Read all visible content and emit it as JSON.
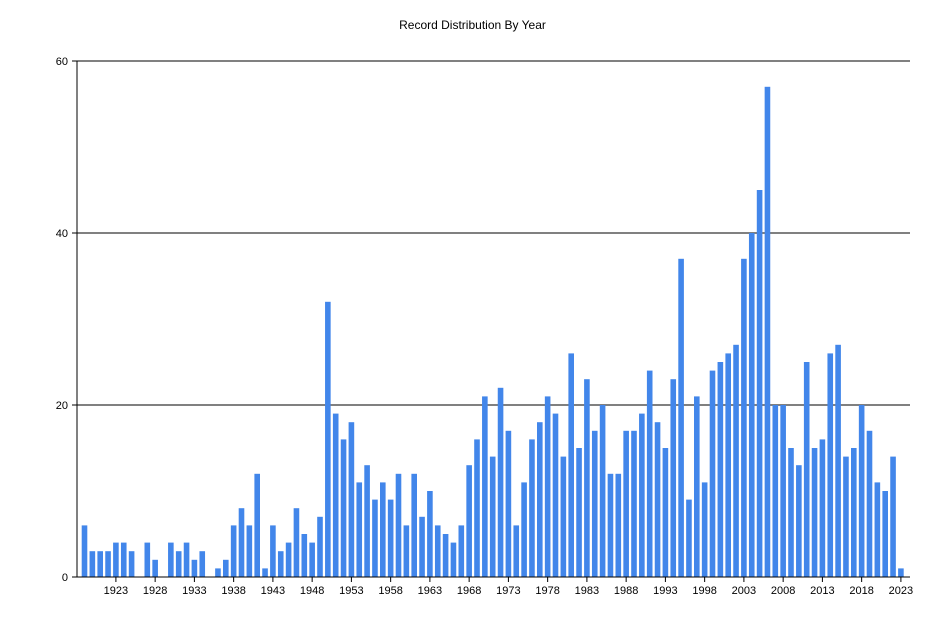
{
  "chart_data": {
    "type": "bar",
    "title": "Record Distribution By Year",
    "xlabel": "",
    "ylabel": "",
    "ylim": [
      0,
      60
    ],
    "yticks": [
      0,
      20,
      40,
      60
    ],
    "grid": true,
    "legend": "none",
    "bar_color": "#4286EA",
    "categories": [
      1919,
      1920,
      1921,
      1922,
      1923,
      1924,
      1925,
      1926,
      1927,
      1928,
      1929,
      1930,
      1931,
      1932,
      1933,
      1934,
      1935,
      1936,
      1937,
      1938,
      1939,
      1940,
      1941,
      1942,
      1943,
      1944,
      1945,
      1946,
      1947,
      1948,
      1949,
      1950,
      1951,
      1952,
      1953,
      1954,
      1955,
      1956,
      1957,
      1958,
      1959,
      1960,
      1961,
      1962,
      1963,
      1964,
      1965,
      1966,
      1967,
      1968,
      1969,
      1970,
      1971,
      1972,
      1973,
      1974,
      1975,
      1976,
      1977,
      1978,
      1979,
      1980,
      1981,
      1982,
      1983,
      1984,
      1985,
      1986,
      1987,
      1988,
      1989,
      1990,
      1991,
      1992,
      1993,
      1994,
      1995,
      1996,
      1997,
      1998,
      1999,
      2000,
      2001,
      2002,
      2003,
      2004,
      2005,
      2006,
      2007,
      2008,
      2009,
      2010,
      2011,
      2012,
      2013,
      2014,
      2015,
      2016,
      2017,
      2018,
      2019,
      2020,
      2021,
      2022,
      2023
    ],
    "values": [
      6,
      3,
      3,
      3,
      4,
      4,
      3,
      0,
      4,
      2,
      0,
      4,
      3,
      4,
      2,
      3,
      0,
      1,
      2,
      6,
      8,
      6,
      12,
      1,
      6,
      3,
      4,
      8,
      5,
      4,
      7,
      32,
      19,
      16,
      18,
      11,
      13,
      9,
      11,
      9,
      12,
      6,
      12,
      7,
      10,
      6,
      5,
      4,
      6,
      13,
      16,
      21,
      14,
      22,
      17,
      6,
      11,
      16,
      18,
      21,
      19,
      14,
      26,
      15,
      23,
      17,
      20,
      12,
      12,
      17,
      17,
      19,
      24,
      18,
      15,
      23,
      37,
      9,
      21,
      11,
      24,
      25,
      26,
      27,
      37,
      40,
      45,
      57,
      20,
      20,
      15,
      13,
      25,
      15,
      16,
      26,
      27,
      14,
      15,
      20,
      17,
      11,
      10,
      14,
      1
    ],
    "xtick_labels": [
      "1923",
      "1928",
      "1933",
      "1938",
      "1943",
      "1948",
      "1953",
      "1958",
      "1963",
      "1968",
      "1973",
      "1978",
      "1983",
      "1988",
      "1993",
      "1998",
      "2003",
      "2008",
      "2013",
      "2018",
      "2023"
    ]
  }
}
